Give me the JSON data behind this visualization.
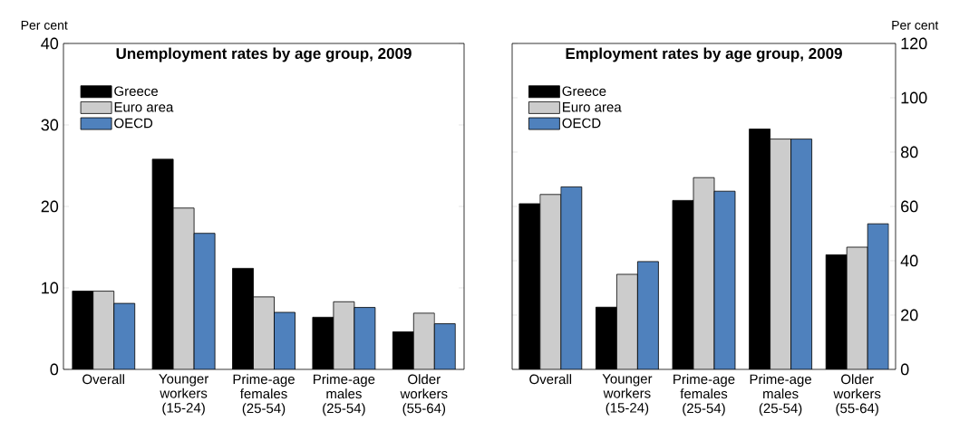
{
  "chart_data": [
    {
      "type": "bar",
      "title": "Unemployment rates by age group, 2009",
      "ylabel": "Per cent",
      "categories": [
        "Overall",
        "Younger workers (15-24)",
        "Prime-age females (25-54)",
        "Prime-age males (25-54)",
        "Older workers (55-64)"
      ],
      "series": [
        {
          "name": "Greece",
          "color": "#000000",
          "values": [
            9.6,
            25.8,
            12.4,
            6.4,
            4.6
          ]
        },
        {
          "name": "Euro area",
          "color": "#cccccc",
          "values": [
            9.6,
            19.8,
            8.9,
            8.3,
            6.9
          ]
        },
        {
          "name": "OECD",
          "color": "#4f81bd",
          "values": [
            8.1,
            16.7,
            7.0,
            7.6,
            5.6
          ]
        }
      ],
      "ylim": [
        0,
        40
      ],
      "yticks": [
        0,
        10,
        20,
        30,
        40
      ],
      "legend": "top left",
      "grid": false
    },
    {
      "type": "bar",
      "title": "Employment rates by age group, 2009",
      "ylabel": "Per cent",
      "categories": [
        "Overall",
        "Younger workers (15-24)",
        "Prime-age females (25-54)",
        "Prime-age males (25-54)",
        "Older workers (55-64)"
      ],
      "series": [
        {
          "name": "Greece",
          "color": "#000000",
          "values": [
            61.0,
            22.9,
            62.2,
            88.5,
            42.2
          ]
        },
        {
          "name": "Euro area",
          "color": "#cccccc",
          "values": [
            64.4,
            35.0,
            70.6,
            84.8,
            45.0
          ]
        },
        {
          "name": "OECD",
          "color": "#4f81bd",
          "values": [
            67.2,
            39.7,
            65.6,
            84.8,
            53.6
          ]
        }
      ],
      "ylim": [
        0,
        120
      ],
      "yticks": [
        0,
        20,
        40,
        60,
        80,
        100,
        120
      ],
      "legend": "top left",
      "grid": false
    }
  ]
}
